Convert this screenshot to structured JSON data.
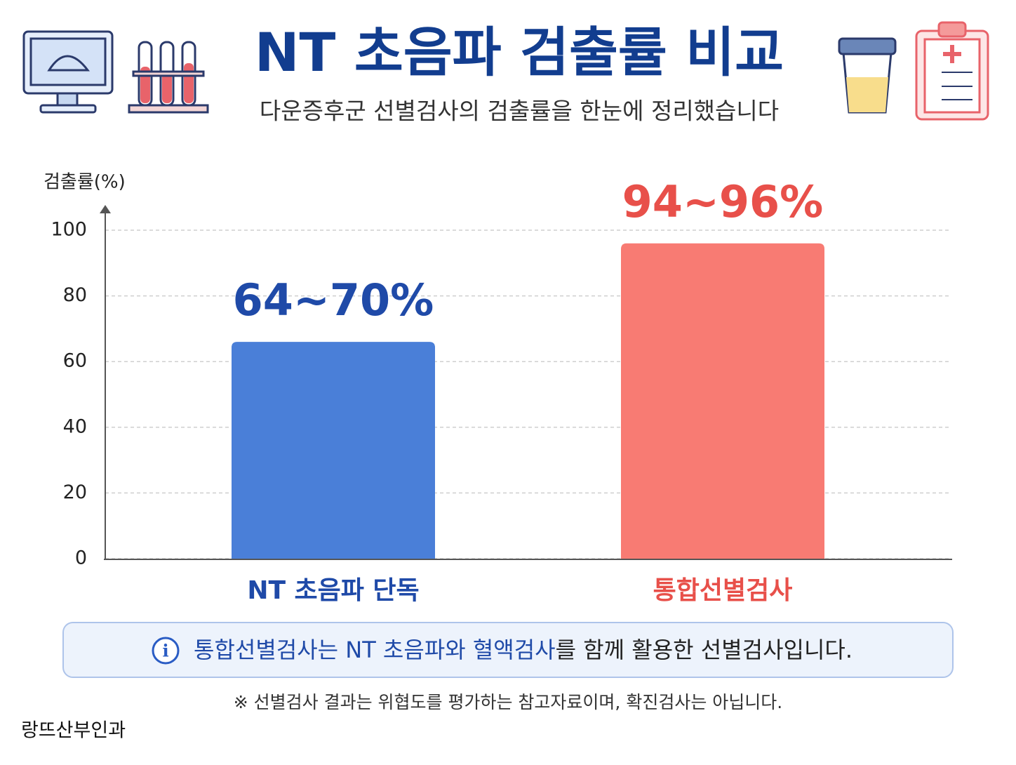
{
  "chart_data": {
    "type": "bar",
    "title": "NT 초음파 검출률 비교",
    "subtitle": "다운증후군 선별검사의 검출률을 한눈에 정리했습니다",
    "y_label": "검출률(%)",
    "categories": [
      "NT 초음파 단독",
      "통합선별검사"
    ],
    "values": [
      66,
      96
    ],
    "value_labels": [
      "64~70%",
      "94~96%"
    ],
    "colors": [
      "#4a7fd8",
      "#f87b73"
    ],
    "label_colors": [
      "#1f4aa8",
      "#e8504a"
    ],
    "ylim": [
      0,
      100
    ],
    "yticks": [
      0,
      20,
      40,
      60,
      80,
      100
    ],
    "grid": true
  },
  "note": {
    "highlight": "통합선별검사는 NT 초음파와 혈액검사",
    "rest": "를 함께 활용한 선별검사입니다."
  },
  "footnote": "※ 선별검사 결과는 위협도를 평가하는 참고자료이며, 확진검사는 아닙니다.",
  "brand": "랑뜨산부인과"
}
